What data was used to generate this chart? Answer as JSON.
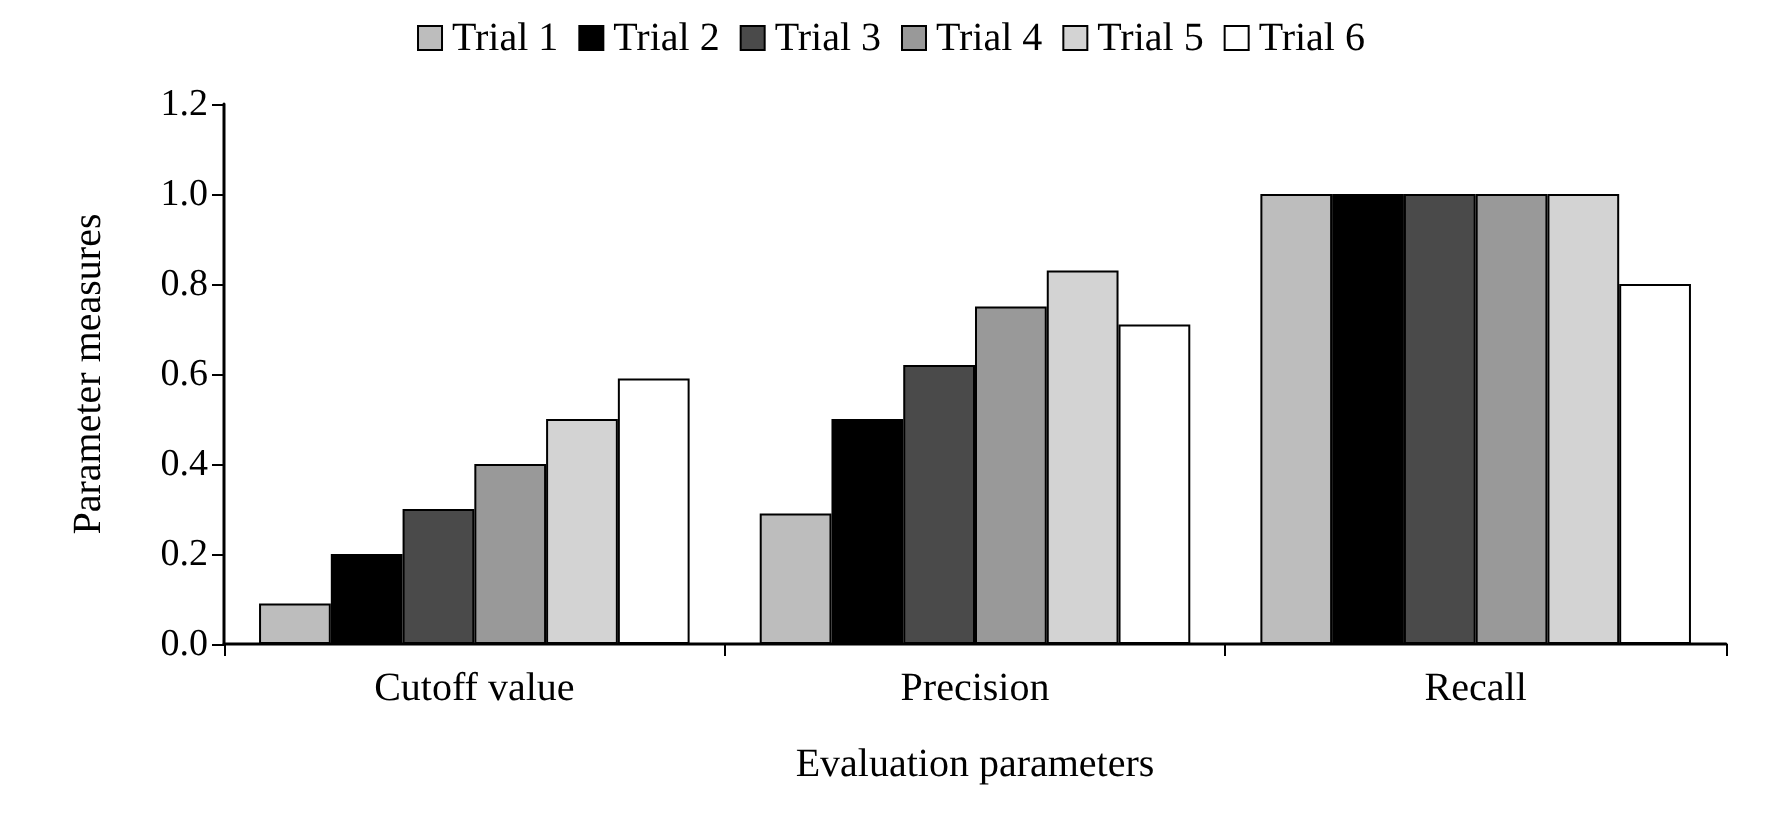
{
  "chart_data": {
    "type": "bar",
    "xlabel": "Evaluation parameters",
    "ylabel": "Parameter measures",
    "categories": [
      "Cutoff value",
      "Precision",
      "Recall"
    ],
    "series": [
      {
        "name": "Trial 1",
        "color": "#bdbdbd",
        "values": [
          0.09,
          0.29,
          1.0
        ]
      },
      {
        "name": "Trial 2",
        "color": "#000000",
        "values": [
          0.2,
          0.5,
          1.0
        ]
      },
      {
        "name": "Trial 3",
        "color": "#4a4a4a",
        "values": [
          0.3,
          0.62,
          1.0
        ]
      },
      {
        "name": "Trial 4",
        "color": "#999999",
        "values": [
          0.4,
          0.75,
          1.0
        ]
      },
      {
        "name": "Trial 5",
        "color": "#d3d3d3",
        "values": [
          0.5,
          0.83,
          1.0
        ]
      },
      {
        "name": "Trial 6",
        "color": "#ffffff",
        "values": [
          0.59,
          0.71,
          0.8
        ]
      }
    ],
    "ylim": [
      0,
      1.2
    ],
    "yticks": [
      {
        "value": 0,
        "label": "0.0"
      },
      {
        "value": 0.2,
        "label": "0.2"
      },
      {
        "value": 0.4,
        "label": "0.4"
      },
      {
        "value": 0.6,
        "label": "0.6"
      },
      {
        "value": 0.8,
        "label": "0.8"
      },
      {
        "value": 1,
        "label": "1.0"
      },
      {
        "value": 1.2,
        "label": "1.2"
      }
    ],
    "grid": false,
    "legend": "top"
  }
}
